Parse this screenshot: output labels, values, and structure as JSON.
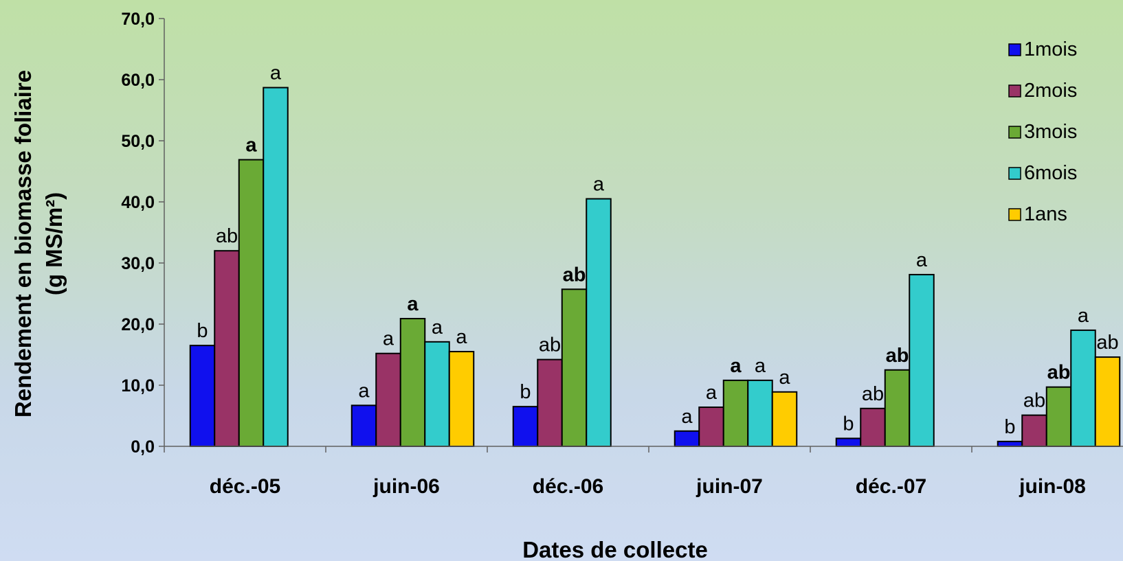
{
  "chart_data": {
    "type": "bar",
    "xlabel": "Dates de collecte",
    "ylabel_lines": [
      "Rendement en biomasse foliaire",
      "(g MS/m²)"
    ],
    "ylim": [
      0,
      70
    ],
    "yticks": [
      "0,0",
      "10,0",
      "20,0",
      "30,0",
      "40,0",
      "50,0",
      "60,0",
      "70,0"
    ],
    "categories": [
      "déc.-05",
      "juin-06",
      "déc.-06",
      "juin-07",
      "déc.-07",
      "juin-08"
    ],
    "legend_position": "top-right",
    "grid": false,
    "series": [
      {
        "name": "1mois",
        "color": "#1010ee",
        "values": [
          16.5,
          6.7,
          6.5,
          2.5,
          1.3,
          0.8
        ],
        "labels": [
          "b",
          "a",
          "b",
          "a",
          "b",
          "b"
        ],
        "bold": [
          false,
          false,
          false,
          false,
          false,
          false
        ]
      },
      {
        "name": "2mois",
        "color": "#993366",
        "values": [
          32.0,
          15.2,
          14.2,
          6.4,
          6.2,
          5.1
        ],
        "labels": [
          "ab",
          "a",
          "ab",
          "a",
          "ab",
          "ab"
        ],
        "bold": [
          false,
          false,
          false,
          false,
          false,
          false
        ]
      },
      {
        "name": "3mois",
        "color": "#6aaa35",
        "values": [
          46.9,
          20.9,
          25.7,
          10.8,
          12.5,
          9.7
        ],
        "labels": [
          "a",
          "a",
          "ab",
          "a",
          "ab",
          "ab"
        ],
        "bold": [
          true,
          true,
          true,
          true,
          true,
          true
        ]
      },
      {
        "name": "6mois",
        "color": "#33cccc",
        "values": [
          58.7,
          17.1,
          40.5,
          10.8,
          28.1,
          19.0
        ],
        "labels": [
          "a",
          "a",
          "a",
          "a",
          "a",
          "a"
        ],
        "bold": [
          false,
          false,
          false,
          false,
          false,
          false
        ]
      },
      {
        "name": "1ans",
        "color": "#ffcc00",
        "values": [
          null,
          15.5,
          null,
          8.9,
          null,
          14.6
        ],
        "labels": [
          null,
          "a",
          null,
          "a",
          null,
          "ab"
        ],
        "bold": [
          false,
          false,
          false,
          false,
          false,
          false
        ]
      }
    ]
  }
}
